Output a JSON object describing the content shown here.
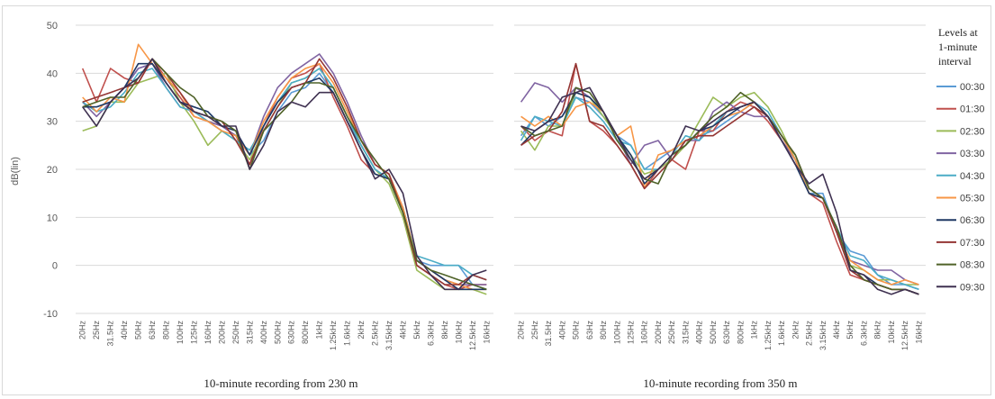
{
  "chart_data": {
    "type": "line",
    "ylabel": "dB(lin)",
    "ylim": [
      -10,
      50
    ],
    "yticks": [
      "50",
      "40",
      "30",
      "20",
      "10",
      "0",
      "-10"
    ],
    "categories": [
      "20Hz",
      "25Hz",
      "31.5Hz",
      "40Hz",
      "50Hz",
      "63Hz",
      "80Hz",
      "100Hz",
      "125Hz",
      "160Hz",
      "200Hz",
      "250Hz",
      "315Hz",
      "400Hz",
      "500Hz",
      "630Hz",
      "800Hz",
      "1kHz",
      "1.25kHz",
      "1.6kHz",
      "2kHz",
      "2.5kHz",
      "3.15kHz",
      "4kHz",
      "5kHz",
      "6.3kHz",
      "8kHz",
      "10kHz",
      "12.5kHz",
      "16kHz"
    ],
    "grid": true,
    "legend": {
      "title_lines": [
        "Levels at",
        "1-minute",
        "interval"
      ],
      "placement": "right",
      "entries": [
        "00:30",
        "01:30",
        "02:30",
        "03:30",
        "04:30",
        "05:30",
        "06:30",
        "07:30",
        "08:30",
        "09:30"
      ]
    },
    "colors": [
      "#5b9bd5",
      "#c0504d",
      "#9bbb59",
      "#8064a2",
      "#4bacc6",
      "#f79646",
      "#1f3864",
      "#943634",
      "#4f6228",
      "#3f3151"
    ],
    "panels": [
      {
        "caption": "10-minute recording from 230 m",
        "series": [
          {
            "name": "00:30",
            "values": [
              33,
              33,
              34,
              37,
              41,
              42,
              38,
              34,
              33,
              32,
              29,
              27,
              23,
              26,
              32,
              36,
              37,
              40,
              36,
              30,
              25,
              20,
              18,
              12,
              1,
              0,
              0,
              0,
              -4,
              -5
            ]
          },
          {
            "name": "01:30",
            "values": [
              41,
              34,
              41,
              39,
              38,
              43,
              39,
              35,
              31,
              30,
              29,
              27,
              21,
              29,
              35,
              39,
              40,
              42,
              35,
              29,
              22,
              19,
              18,
              11,
              0,
              -2,
              -4,
              -5,
              -4,
              -4
            ]
          },
          {
            "name": "02:30",
            "values": [
              28,
              29,
              34,
              34,
              38,
              39,
              40,
              34,
              30,
              25,
              28,
              26,
              22,
              28,
              33,
              38,
              39,
              41,
              37,
              31,
              25,
              20,
              17,
              10,
              -1,
              -3,
              -5,
              -5,
              -5,
              -6
            ]
          },
          {
            "name": "03:30",
            "values": [
              34,
              31,
              34,
              37,
              41,
              42,
              37,
              33,
              32,
              30,
              29,
              27,
              23,
              31,
              37,
              40,
              42,
              44,
              40,
              34,
              27,
              21,
              19,
              12,
              1,
              -1,
              -3,
              -4,
              -4,
              -4
            ]
          },
          {
            "name": "04:30",
            "values": [
              34,
              32,
              33,
              36,
              40,
              41,
              37,
              33,
              32,
              30,
              28,
              26,
              24,
              29,
              34,
              38,
              39,
              41,
              37,
              31,
              25,
              20,
              18,
              11,
              2,
              1,
              0,
              0,
              -2,
              -3
            ]
          },
          {
            "name": "05:30",
            "values": [
              35,
              32,
              35,
              34,
              46,
              42,
              39,
              36,
              31,
              30,
              28,
              27,
              23,
              30,
              35,
              39,
              41,
              42,
              38,
              32,
              26,
              21,
              19,
              12,
              1,
              -1,
              -3,
              -4,
              -5,
              -5
            ]
          },
          {
            "name": "06:30",
            "values": [
              33,
              33,
              34,
              37,
              42,
              42,
              38,
              34,
              33,
              32,
              29,
              28,
              23,
              29,
              34,
              37,
              38,
              39,
              36,
              30,
              24,
              19,
              18,
              11,
              1,
              -1,
              -3,
              -5,
              -5,
              -5
            ]
          },
          {
            "name": "07:30",
            "values": [
              34,
              35,
              36,
              37,
              38,
              43,
              40,
              36,
              32,
              31,
              30,
              26,
              21,
              28,
              33,
              37,
              38,
              43,
              39,
              33,
              26,
              21,
              19,
              11,
              0,
              -2,
              -4,
              -4,
              -2,
              -3
            ]
          },
          {
            "name": "08:30",
            "values": [
              33,
              34,
              35,
              35,
              39,
              43,
              40,
              37,
              35,
              31,
              30,
              28,
              20,
              28,
              31,
              34,
              38,
              38,
              37,
              31,
              26,
              22,
              18,
              11,
              1,
              -1,
              -2,
              -3,
              -4,
              -5
            ]
          },
          {
            "name": "09:30",
            "values": [
              33,
              29,
              34,
              37,
              39,
              43,
              38,
              34,
              32,
              31,
              29,
              29,
              20,
              25,
              32,
              34,
              33,
              36,
              36,
              30,
              24,
              18,
              20,
              15,
              2,
              -2,
              -5,
              -5,
              -2,
              -1
            ]
          }
        ]
      },
      {
        "caption": "10-minute recording from 350 m",
        "series": [
          {
            "name": "00:30",
            "values": [
              27,
              31,
              29,
              31,
              35,
              34,
              31,
              27,
              25,
              20,
              22,
              24,
              26,
              27,
              28,
              30,
              32,
              34,
              31,
              27,
              22,
              15,
              15,
              7,
              3,
              2,
              -2,
              -4,
              -4,
              -5
            ]
          },
          {
            "name": "01:30",
            "values": [
              29,
              26,
              28,
              27,
              42,
              30,
              28,
              25,
              21,
              16,
              20,
              22,
              20,
              28,
              28,
              32,
              34,
              33,
              30,
              26,
              22,
              15,
              13,
              5,
              -2,
              -3,
              -4,
              -5,
              -5,
              -6
            ]
          },
          {
            "name": "02:30",
            "values": [
              28,
              24,
              29,
              29,
              36,
              35,
              31,
              27,
              23,
              19,
              20,
              22,
              25,
              30,
              35,
              33,
              35,
              36,
              33,
              28,
              22,
              15,
              14,
              7,
              0,
              -1,
              -3,
              -3,
              -4,
              -4
            ]
          },
          {
            "name": "03:30",
            "values": [
              34,
              38,
              37,
              34,
              37,
              35,
              32,
              27,
              21,
              25,
              26,
              22,
              26,
              26,
              32,
              34,
              32,
              31,
              31,
              26,
              22,
              15,
              14,
              7,
              1,
              0,
              -1,
              -1,
              -3,
              -4
            ]
          },
          {
            "name": "04:30",
            "values": [
              26,
              31,
              30,
              29,
              35,
              33,
              30,
              26,
              25,
              20,
              20,
              23,
              27,
              26,
              29,
              32,
              33,
              34,
              32,
              27,
              22,
              16,
              14,
              8,
              2,
              1,
              -2,
              -3,
              -4,
              -5
            ]
          },
          {
            "name": "05:30",
            "values": [
              31,
              29,
              31,
              29,
              33,
              34,
              32,
              27,
              29,
              16,
              23,
              24,
              26,
              27,
              29,
              31,
              32,
              34,
              31,
              27,
              22,
              15,
              14,
              7,
              1,
              -1,
              -3,
              -4,
              -3,
              -4
            ]
          },
          {
            "name": "06:30",
            "values": [
              25,
              28,
              30,
              31,
              36,
              35,
              32,
              27,
              23,
              17,
              20,
              23,
              25,
              28,
              29,
              31,
              33,
              34,
              31,
              26,
              21,
              15,
              14,
              7,
              -1,
              -2,
              -4,
              -5,
              -5,
              -6
            ]
          },
          {
            "name": "07:30",
            "values": [
              25,
              27,
              28,
              32,
              42,
              30,
              29,
              25,
              21,
              16,
              19,
              22,
              26,
              27,
              27,
              29,
              31,
              33,
              31,
              27,
              23,
              16,
              14,
              7,
              -1,
              -3,
              -4,
              -5,
              -5,
              -6
            ]
          },
          {
            "name": "08:30",
            "values": [
              29,
              27,
              28,
              29,
              37,
              36,
              32,
              26,
              22,
              18,
              17,
              23,
              25,
              28,
              31,
              33,
              36,
              34,
              31,
              27,
              23,
              16,
              14,
              8,
              0,
              -3,
              -4,
              -5,
              -5,
              -6
            ]
          },
          {
            "name": "09:30",
            "values": [
              29,
              28,
              30,
              35,
              36,
              37,
              32,
              27,
              22,
              18,
              20,
              23,
              29,
              28,
              30,
              32,
              33,
              34,
              31,
              26,
              21,
              17,
              19,
              11,
              -1,
              -2,
              -5,
              -6,
              -5,
              -6
            ]
          }
        ]
      }
    ]
  }
}
